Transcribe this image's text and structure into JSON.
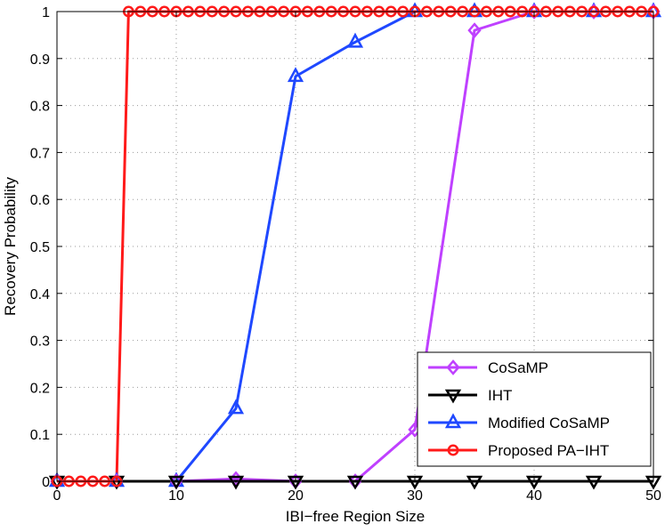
{
  "chart_data": {
    "type": "line",
    "title": "",
    "xlabel": "IBI−free Region Size",
    "ylabel": "Recovery Probability",
    "xlim": [
      0,
      50
    ],
    "ylim": [
      0,
      1
    ],
    "grid": true,
    "legend_position": "bottom-right",
    "xticks": [
      0,
      10,
      20,
      30,
      40,
      50
    ],
    "xtick_labels": [
      "0",
      "10",
      "20",
      "30",
      "40",
      "50"
    ],
    "yticks": [
      0,
      0.1,
      0.2,
      0.3,
      0.4,
      0.5,
      0.6,
      0.7,
      0.8,
      0.9,
      1
    ],
    "ytick_labels": [
      "0",
      "0.1",
      "0.2",
      "0.3",
      "0.4",
      "0.5",
      "0.6",
      "0.7",
      "0.8",
      "0.9",
      "1"
    ],
    "series": [
      {
        "name": "CoSaMP",
        "color": "#bf40ff",
        "marker": "diamond",
        "x": [
          0,
          5,
          10,
          15,
          20,
          25,
          30,
          35,
          40,
          45,
          50
        ],
        "values": [
          0,
          0,
          0,
          0.005,
          0,
          0,
          0.11,
          0.96,
          1,
          1,
          1
        ]
      },
      {
        "name": "IHT",
        "color": "#000000",
        "marker": "triangle-down",
        "x": [
          0,
          5,
          10,
          15,
          20,
          25,
          30,
          35,
          40,
          45,
          50
        ],
        "values": [
          0,
          0,
          0,
          0,
          0,
          0,
          0,
          0,
          0,
          0,
          0
        ]
      },
      {
        "name": "Modified CoSaMP",
        "color": "#1f48ff",
        "marker": "triangle-up",
        "x": [
          0,
          5,
          10,
          15,
          20,
          25,
          30,
          35,
          40,
          45,
          50
        ],
        "values": [
          0,
          0,
          0,
          0.155,
          0.862,
          0.935,
          1,
          1,
          1,
          1,
          1
        ]
      },
      {
        "name": "Proposed PA−IHT",
        "color": "#ff1a1a",
        "marker": "circle",
        "x": [
          0,
          1,
          2,
          3,
          4,
          5,
          6,
          7,
          8,
          9,
          10,
          11,
          12,
          13,
          14,
          15,
          16,
          17,
          18,
          19,
          20,
          21,
          22,
          23,
          24,
          25,
          26,
          27,
          28,
          29,
          30,
          31,
          32,
          33,
          34,
          35,
          36,
          37,
          38,
          39,
          40,
          41,
          42,
          43,
          44,
          45,
          46,
          47,
          48,
          49,
          50
        ],
        "values": [
          0,
          0,
          0,
          0,
          0,
          0,
          1,
          1,
          1,
          1,
          1,
          1,
          1,
          1,
          1,
          1,
          1,
          1,
          1,
          1,
          1,
          1,
          1,
          1,
          1,
          1,
          1,
          1,
          1,
          1,
          1,
          1,
          1,
          1,
          1,
          1,
          1,
          1,
          1,
          1,
          1,
          1,
          1,
          1,
          1,
          1,
          1,
          1,
          1,
          1,
          1
        ]
      }
    ]
  }
}
